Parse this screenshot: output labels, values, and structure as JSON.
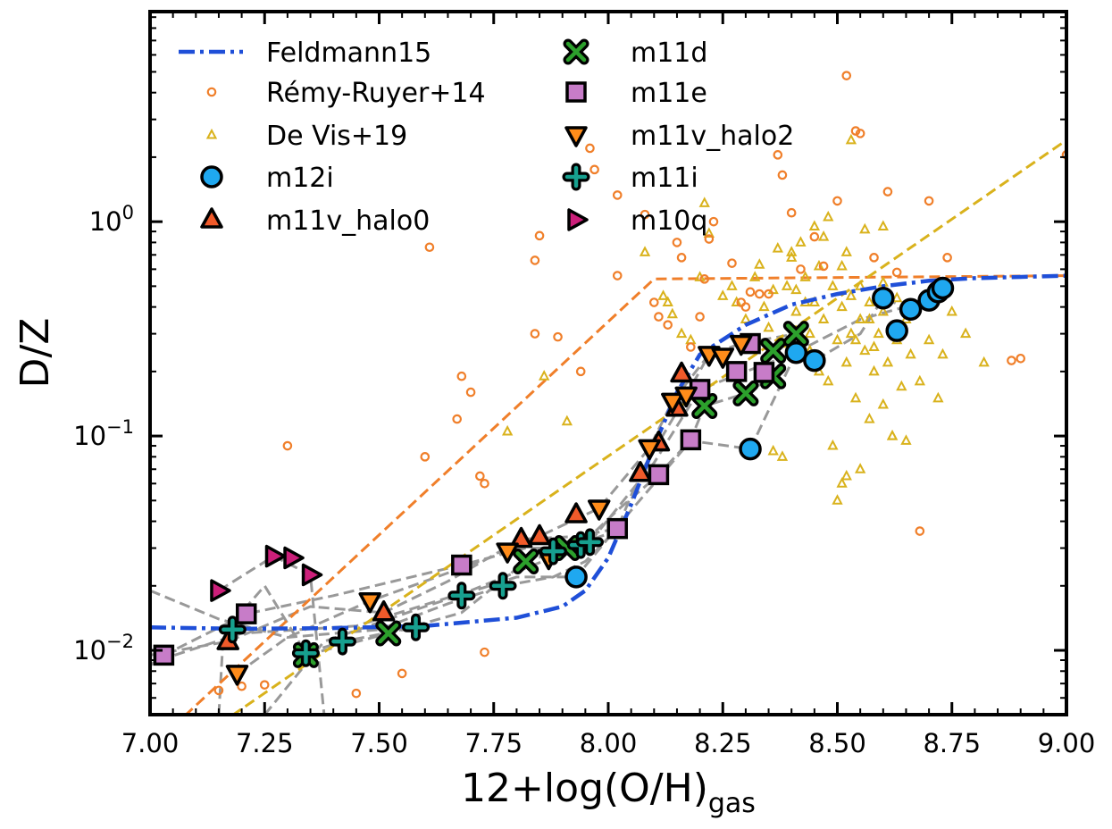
{
  "chart_data": {
    "type": "scatter",
    "xlabel": "12+log(O/H)",
    "xlabel_subscript": "gas",
    "ylabel": "D/Z",
    "xlim": [
      7.0,
      9.0
    ],
    "ylim_log10": [
      -2.3,
      0.98
    ],
    "yscale": "log",
    "x_ticks": [
      7.0,
      7.25,
      7.5,
      7.75,
      8.0,
      8.25,
      8.5,
      8.75,
      9.0
    ],
    "x_tick_labels": [
      "7.00",
      "7.25",
      "7.50",
      "7.75",
      "8.00",
      "8.25",
      "8.50",
      "8.75",
      "9.00"
    ],
    "y_ticks_log10": [
      -2,
      -1,
      0
    ],
    "y_tick_labels": [
      {
        "base": "10",
        "exp": "−2"
      },
      {
        "base": "10",
        "exp": "−1"
      },
      {
        "base": "10",
        "exp": "0"
      }
    ],
    "legend": {
      "placement": "top-left",
      "columns": [
        [
          "Feldmann15",
          "Rémy-Ruyer+14",
          "De Vis+19",
          "m12i",
          "m11v_halo0"
        ],
        [
          "m11d",
          "m11e",
          "m11v_halo2",
          "m11i",
          "m10q"
        ]
      ]
    },
    "colors": {
      "feldmann": "#1f4fd8",
      "remy": "#f07f2a",
      "devis": "#d9b21c",
      "m12i": "#1fa8f0",
      "m11v_halo0": "#f05a2a",
      "m11d": "#2ca02c",
      "m11e": "#c77cc8",
      "m11v_halo2": "#ff8c1a",
      "m11i": "#17a08f",
      "m10q": "#cc1f7a",
      "tracks": "#999999"
    },
    "feldmann15": {
      "name": "Feldmann15",
      "x": [
        7.0,
        7.2,
        7.4,
        7.6,
        7.8,
        7.9,
        7.95,
        8.0,
        8.05,
        8.1,
        8.15,
        8.2,
        8.3,
        8.4,
        8.5,
        8.6,
        8.7,
        8.8,
        9.0
      ],
      "y": [
        0.0128,
        0.0126,
        0.0127,
        0.013,
        0.0142,
        0.016,
        0.019,
        0.027,
        0.048,
        0.09,
        0.16,
        0.24,
        0.33,
        0.41,
        0.46,
        0.5,
        0.53,
        0.545,
        0.56
      ]
    },
    "remy_fit": {
      "x": [
        7.05,
        8.1,
        9.0
      ],
      "y": [
        0.0044,
        0.54,
        0.56
      ]
    },
    "devis_fit": {
      "x": [
        7.15,
        9.0
      ],
      "y": [
        0.0045,
        2.4
      ]
    },
    "remy_points": [
      [
        7.3,
        0.09
      ],
      [
        7.15,
        0.0065
      ],
      [
        7.2,
        0.0068
      ],
      [
        7.25,
        0.0069
      ],
      [
        7.45,
        0.0063
      ],
      [
        7.55,
        0.0078
      ],
      [
        7.6,
        0.08
      ],
      [
        7.61,
        0.76
      ],
      [
        7.67,
        0.12
      ],
      [
        7.68,
        0.19
      ],
      [
        7.7,
        0.16
      ],
      [
        7.72,
        0.065
      ],
      [
        7.73,
        0.06
      ],
      [
        7.73,
        0.0098
      ],
      [
        7.84,
        0.3
      ],
      [
        7.84,
        0.66
      ],
      [
        7.85,
        0.86
      ],
      [
        7.89,
        0.29
      ],
      [
        7.94,
        0.2
      ],
      [
        7.96,
        2.2
      ],
      [
        7.97,
        1.75
      ],
      [
        8.02,
        1.33
      ],
      [
        8.02,
        0.56
      ],
      [
        8.08,
        1.08
      ],
      [
        8.1,
        0.42
      ],
      [
        8.11,
        0.36
      ],
      [
        8.13,
        0.33
      ],
      [
        8.15,
        0.8
      ],
      [
        8.16,
        0.68
      ],
      [
        8.18,
        0.26
      ],
      [
        8.2,
        0.36
      ],
      [
        8.21,
        0.54
      ],
      [
        8.22,
        0.83
      ],
      [
        8.23,
        1.0
      ],
      [
        8.25,
        0.24
      ],
      [
        8.27,
        0.64
      ],
      [
        8.29,
        0.42
      ],
      [
        8.3,
        0.4
      ],
      [
        8.31,
        0.47
      ],
      [
        8.33,
        0.46
      ],
      [
        8.35,
        0.46
      ],
      [
        8.37,
        2.05
      ],
      [
        8.38,
        1.65
      ],
      [
        8.4,
        1.1
      ],
      [
        8.42,
        0.6
      ],
      [
        8.45,
        0.85
      ],
      [
        8.47,
        0.62
      ],
      [
        8.5,
        1.25
      ],
      [
        8.52,
        4.8
      ],
      [
        8.54,
        2.65
      ],
      [
        8.55,
        2.58
      ],
      [
        8.58,
        0.68
      ],
      [
        8.61,
        1.38
      ],
      [
        8.63,
        0.58
      ],
      [
        8.7,
        1.25
      ],
      [
        8.74,
        0.68
      ],
      [
        8.88,
        0.225
      ],
      [
        8.68,
        0.036
      ],
      [
        9.0,
        2.05
      ],
      [
        8.9,
        0.23
      ]
    ],
    "devis_points": [
      [
        7.78,
        0.105
      ],
      [
        7.86,
        0.19
      ],
      [
        7.91,
        0.117
      ],
      [
        8.08,
        0.72
      ],
      [
        8.12,
        0.45
      ],
      [
        8.13,
        0.42
      ],
      [
        8.14,
        0.37
      ],
      [
        8.16,
        0.3
      ],
      [
        8.18,
        0.28
      ],
      [
        8.2,
        0.55
      ],
      [
        8.21,
        1.22
      ],
      [
        8.22,
        0.88
      ],
      [
        8.25,
        0.45
      ],
      [
        8.27,
        0.5
      ],
      [
        8.28,
        0.42
      ],
      [
        8.3,
        0.35
      ],
      [
        8.31,
        0.27
      ],
      [
        8.32,
        0.55
      ],
      [
        8.33,
        0.63
      ],
      [
        8.34,
        0.4
      ],
      [
        8.35,
        0.32
      ],
      [
        8.36,
        0.48
      ],
      [
        8.37,
        0.75
      ],
      [
        8.38,
        0.27
      ],
      [
        8.39,
        0.5
      ],
      [
        8.4,
        0.72
      ],
      [
        8.41,
        0.38
      ],
      [
        8.42,
        0.8
      ],
      [
        8.43,
        0.55
      ],
      [
        8.44,
        0.3
      ],
      [
        8.45,
        0.42
      ],
      [
        8.46,
        0.62
      ],
      [
        8.47,
        0.35
      ],
      [
        8.48,
        0.18
      ],
      [
        8.49,
        0.5
      ],
      [
        8.5,
        0.28
      ],
      [
        8.51,
        0.62
      ],
      [
        8.51,
        0.4
      ],
      [
        8.52,
        0.22
      ],
      [
        8.53,
        0.45
      ],
      [
        8.53,
        0.3
      ],
      [
        8.54,
        0.15
      ],
      [
        8.55,
        0.35
      ],
      [
        8.55,
        0.5
      ],
      [
        8.56,
        0.25
      ],
      [
        8.57,
        0.12
      ],
      [
        8.57,
        0.42
      ],
      [
        8.58,
        0.2
      ],
      [
        8.59,
        0.3
      ],
      [
        8.6,
        0.14
      ],
      [
        8.6,
        0.38
      ],
      [
        8.61,
        0.22
      ],
      [
        8.62,
        0.1
      ],
      [
        8.63,
        0.28
      ],
      [
        8.64,
        0.17
      ],
      [
        8.65,
        0.35
      ],
      [
        8.66,
        0.24
      ],
      [
        8.68,
        0.18
      ],
      [
        8.7,
        0.28
      ],
      [
        8.72,
        0.15
      ],
      [
        8.73,
        0.24
      ],
      [
        8.75,
        0.38
      ],
      [
        8.78,
        0.3
      ],
      [
        8.82,
        0.22
      ],
      [
        8.36,
        0.085
      ],
      [
        8.38,
        0.08
      ],
      [
        8.51,
        0.06
      ],
      [
        8.52,
        0.065
      ],
      [
        8.5,
        0.05
      ],
      [
        8.55,
        0.07
      ],
      [
        8.62,
        0.1
      ],
      [
        8.65,
        0.095
      ],
      [
        8.49,
        0.09
      ],
      [
        8.56,
        0.92
      ],
      [
        8.6,
        0.95
      ],
      [
        8.45,
        0.95
      ],
      [
        8.48,
        1.05
      ],
      [
        8.53,
        2.4
      ],
      [
        8.4,
        0.68
      ],
      [
        8.44,
        0.25
      ],
      [
        8.47,
        0.85
      ],
      [
        8.6,
        0.52
      ],
      [
        8.52,
        0.72
      ],
      [
        8.57,
        0.35
      ],
      [
        8.46,
        0.2
      ],
      [
        8.54,
        0.28
      ],
      [
        8.58,
        0.26
      ],
      [
        8.43,
        0.42
      ],
      [
        8.41,
        0.48
      ],
      [
        8.63,
        0.44
      ]
    ],
    "series": [
      {
        "name": "m12i",
        "marker": "circle",
        "color_key": "m12i",
        "points": [
          [
            7.93,
            0.022
          ],
          [
            8.31,
            0.087
          ],
          [
            8.41,
            0.245
          ],
          [
            8.45,
            0.225
          ],
          [
            8.6,
            0.44
          ],
          [
            8.63,
            0.31
          ],
          [
            8.66,
            0.39
          ],
          [
            8.7,
            0.43
          ],
          [
            8.72,
            0.47
          ],
          [
            8.73,
            0.49
          ]
        ]
      },
      {
        "name": "m11v_halo0",
        "marker": "triangle-up",
        "color_key": "m11v_halo0",
        "points": [
          [
            7.17,
            0.011
          ],
          [
            7.51,
            0.015
          ],
          [
            7.81,
            0.033
          ],
          [
            7.85,
            0.034
          ],
          [
            7.93,
            0.043
          ],
          [
            8.07,
            0.067
          ],
          [
            8.11,
            0.093
          ],
          [
            8.15,
            0.135
          ],
          [
            8.16,
            0.195
          ]
        ]
      },
      {
        "name": "m11d",
        "marker": "x",
        "color_key": "m11d",
        "points": [
          [
            7.34,
            0.0095
          ],
          [
            7.52,
            0.012
          ],
          [
            7.82,
            0.026
          ],
          [
            7.91,
            0.03
          ],
          [
            8.21,
            0.138
          ],
          [
            8.3,
            0.158
          ],
          [
            8.36,
            0.19
          ],
          [
            8.36,
            0.25
          ],
          [
            8.41,
            0.3
          ]
        ]
      },
      {
        "name": "m11e",
        "marker": "square",
        "color_key": "m11e",
        "points": [
          [
            7.03,
            0.0095
          ],
          [
            7.21,
            0.0148
          ],
          [
            7.68,
            0.025
          ],
          [
            8.02,
            0.037
          ],
          [
            8.11,
            0.066
          ],
          [
            8.18,
            0.096
          ],
          [
            8.2,
            0.165
          ],
          [
            8.28,
            0.2
          ],
          [
            8.31,
            0.27
          ],
          [
            8.34,
            0.198
          ]
        ]
      },
      {
        "name": "m11v_halo2",
        "marker": "triangle-down",
        "color_key": "m11v_halo2",
        "points": [
          [
            7.19,
            0.0078
          ],
          [
            7.48,
            0.017
          ],
          [
            7.78,
            0.029
          ],
          [
            7.87,
            0.027
          ],
          [
            7.98,
            0.046
          ],
          [
            8.09,
            0.088
          ],
          [
            8.14,
            0.145
          ],
          [
            8.17,
            0.155
          ],
          [
            8.22,
            0.24
          ],
          [
            8.25,
            0.235
          ],
          [
            8.29,
            0.27
          ]
        ]
      },
      {
        "name": "m11i",
        "marker": "plus",
        "color_key": "m11i",
        "points": [
          [
            7.18,
            0.0125
          ],
          [
            7.34,
            0.0097
          ],
          [
            7.42,
            0.011
          ],
          [
            7.58,
            0.0128
          ],
          [
            7.68,
            0.018
          ],
          [
            7.77,
            0.02
          ],
          [
            7.88,
            0.029
          ],
          [
            7.94,
            0.031
          ],
          [
            7.96,
            0.032
          ]
        ]
      },
      {
        "name": "m10q",
        "marker": "triangle-right",
        "color_key": "m10q",
        "points": [
          [
            7.15,
            0.019
          ],
          [
            7.27,
            0.0275
          ],
          [
            7.31,
            0.027
          ],
          [
            7.35,
            0.0225
          ]
        ]
      }
    ],
    "tracks": [
      [
        [
          7.0,
          0.0095
        ],
        [
          7.17,
          0.011
        ],
        [
          7.35,
          0.016
        ],
        [
          7.51,
          0.015
        ],
        [
          7.65,
          0.021
        ],
        [
          7.81,
          0.033
        ],
        [
          7.93,
          0.034
        ],
        [
          8.02,
          0.037
        ],
        [
          8.07,
          0.067
        ],
        [
          8.15,
          0.13
        ],
        [
          8.22,
          0.24
        ],
        [
          8.31,
          0.27
        ]
      ],
      [
        [
          7.0,
          0.0085
        ],
        [
          7.03,
          0.0095
        ],
        [
          7.21,
          0.0148
        ],
        [
          7.4,
          0.018
        ],
        [
          7.68,
          0.025
        ],
        [
          7.82,
          0.03
        ],
        [
          7.91,
          0.03
        ],
        [
          8.0,
          0.035
        ]
      ],
      [
        [
          7.0,
          0.019
        ],
        [
          7.15,
          0.014
        ],
        [
          7.3,
          0.0115
        ],
        [
          7.5,
          0.0125
        ],
        [
          7.65,
          0.0165
        ],
        [
          7.77,
          0.02
        ],
        [
          7.88,
          0.022
        ],
        [
          7.95,
          0.026
        ],
        [
          8.02,
          0.037
        ]
      ],
      [
        [
          7.15,
          0.019
        ],
        [
          7.27,
          0.0275
        ],
        [
          7.35,
          0.0225
        ],
        [
          7.38,
          0.005
        ]
      ],
      [
        [
          7.19,
          0.0078
        ],
        [
          7.3,
          0.0115
        ],
        [
          7.48,
          0.017
        ],
        [
          7.6,
          0.021
        ],
        [
          7.78,
          0.029
        ],
        [
          7.98,
          0.046
        ],
        [
          8.09,
          0.088
        ],
        [
          8.14,
          0.145
        ],
        [
          8.22,
          0.24
        ],
        [
          8.29,
          0.27
        ],
        [
          8.41,
          0.3
        ]
      ],
      [
        [
          7.34,
          0.0095
        ],
        [
          7.52,
          0.012
        ],
        [
          7.68,
          0.015
        ],
        [
          7.82,
          0.026
        ],
        [
          7.94,
          0.031
        ],
        [
          8.02,
          0.045
        ],
        [
          8.11,
          0.066
        ],
        [
          8.18,
          0.096
        ],
        [
          8.21,
          0.138
        ],
        [
          8.3,
          0.158
        ],
        [
          8.36,
          0.19
        ]
      ],
      [
        [
          7.15,
          0.005
        ],
        [
          7.16,
          0.012
        ],
        [
          7.25,
          0.02
        ],
        [
          7.34,
          0.0097
        ],
        [
          7.42,
          0.011
        ],
        [
          7.58,
          0.0128
        ]
      ],
      [
        [
          7.25,
          0.005
        ],
        [
          7.38,
          0.011
        ],
        [
          7.6,
          0.016
        ],
        [
          7.8,
          0.022
        ],
        [
          7.93,
          0.022
        ],
        [
          8.05,
          0.045
        ],
        [
          8.18,
          0.095
        ],
        [
          8.31,
          0.087
        ],
        [
          8.41,
          0.245
        ],
        [
          8.45,
          0.225
        ],
        [
          8.55,
          0.3
        ],
        [
          8.6,
          0.44
        ],
        [
          8.66,
          0.39
        ],
        [
          8.73,
          0.49
        ]
      ],
      [
        [
          7.02,
          0.009
        ],
        [
          7.2,
          0.012
        ],
        [
          7.45,
          0.013
        ],
        [
          7.7,
          0.019
        ],
        [
          7.96,
          0.032
        ],
        [
          8.1,
          0.075
        ],
        [
          8.2,
          0.165
        ],
        [
          8.3,
          0.2
        ],
        [
          8.4,
          0.24
        ],
        [
          8.55,
          0.35
        ],
        [
          8.7,
          0.43
        ]
      ]
    ]
  }
}
